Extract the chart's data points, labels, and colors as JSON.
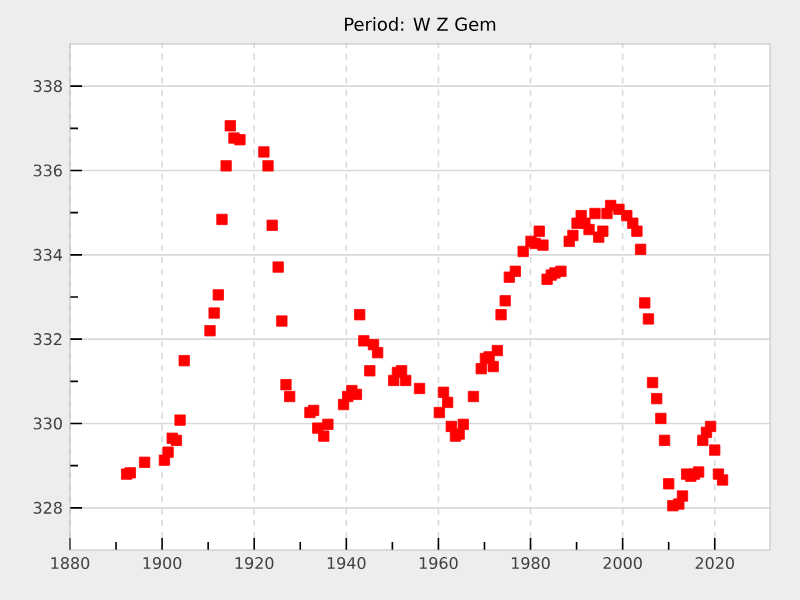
{
  "chart_data": {
    "type": "scatter",
    "title": "Period: W Z Gem",
    "x": [
      1892.3,
      1893.1,
      1896.2,
      1900.5,
      1901.3,
      1902.2,
      1903.1,
      1903.9,
      1904.8,
      1910.4,
      1911.3,
      1912.2,
      1913.0,
      1913.9,
      1914.8,
      1915.6,
      1916.9,
      1922.1,
      1923.0,
      1923.9,
      1925.2,
      1926.0,
      1926.9,
      1927.7,
      1932.1,
      1932.9,
      1933.8,
      1935.1,
      1936.0,
      1939.4,
      1940.3,
      1941.2,
      1942.2,
      1942.9,
      1943.8,
      1945.1,
      1945.9,
      1946.8,
      1950.3,
      1951.1,
      1952.0,
      1952.9,
      1955.9,
      1960.2,
      1961.1,
      1962.0,
      1962.8,
      1963.7,
      1964.5,
      1965.4,
      1967.6,
      1969.3,
      1970.2,
      1971.0,
      1971.9,
      1972.8,
      1973.6,
      1974.5,
      1975.4,
      1976.7,
      1978.4,
      1980.1,
      1981.0,
      1981.9,
      1982.7,
      1983.6,
      1984.5,
      1985.3,
      1986.6,
      1988.4,
      1989.2,
      1990.1,
      1991.0,
      1991.8,
      1992.7,
      1994.0,
      1994.8,
      1995.7,
      1996.6,
      1997.4,
      1999.2,
      2000.9,
      2002.2,
      2003.1,
      2003.9,
      2004.8,
      2005.6,
      2006.5,
      2007.4,
      2008.3,
      2009.1,
      2010.0,
      2010.9,
      2012.2,
      2013.0,
      2013.9,
      2014.8,
      2015.6,
      2016.5,
      2017.4,
      2018.2,
      2019.1,
      2020.0,
      2020.8,
      2021.7
    ],
    "values": [
      328.8,
      328.83,
      329.08,
      329.13,
      329.32,
      329.65,
      329.6,
      330.08,
      331.49,
      332.2,
      332.62,
      333.05,
      334.84,
      336.11,
      337.06,
      336.77,
      336.73,
      336.44,
      336.11,
      334.7,
      333.71,
      332.43,
      330.92,
      330.64,
      330.26,
      330.31,
      329.89,
      329.7,
      329.98,
      330.45,
      330.64,
      330.78,
      330.69,
      332.58,
      331.96,
      331.25,
      331.87,
      331.68,
      331.02,
      331.21,
      331.25,
      331.02,
      330.83,
      330.26,
      330.74,
      330.5,
      329.93,
      329.7,
      329.75,
      329.98,
      330.64,
      331.3,
      331.54,
      331.58,
      331.35,
      331.73,
      332.58,
      332.91,
      333.47,
      333.61,
      334.08,
      334.32,
      334.27,
      334.56,
      334.23,
      333.42,
      333.52,
      333.57,
      333.61,
      334.32,
      334.46,
      334.75,
      334.93,
      334.75,
      334.6,
      334.98,
      334.42,
      334.56,
      334.98,
      335.17,
      335.08,
      334.93,
      334.75,
      334.56,
      334.13,
      332.86,
      332.48,
      330.97,
      330.59,
      330.12,
      329.6,
      328.57,
      328.05,
      328.09,
      328.28,
      328.8,
      328.75,
      328.8,
      328.85,
      329.6,
      329.79,
      329.93,
      329.37,
      328.8,
      328.66
    ],
    "color": "#ff0000",
    "marker": "square",
    "grid": true,
    "xlim": [
      1880,
      2032
    ],
    "ylim": [
      327,
      339
    ],
    "xticks": [
      1880,
      1900,
      1920,
      1940,
      1960,
      1980,
      2000,
      2020
    ],
    "yticks": [
      328,
      330,
      332,
      334,
      336,
      338
    ]
  }
}
